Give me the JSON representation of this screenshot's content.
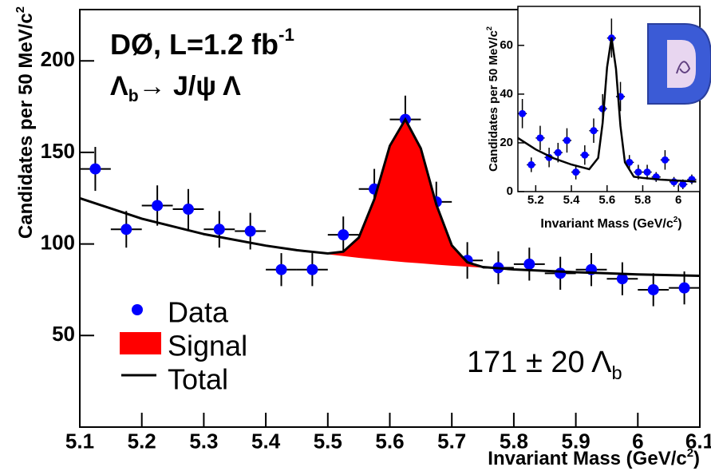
{
  "chart_data": [
    {
      "type": "scatter",
      "title": [
        "DØ, L=1.2 fb",
        "-1"
      ],
      "subtitle": [
        "Λ",
        "b",
        "→ J/ψ Λ"
      ],
      "annotation": [
        "171 ± 20 Λ",
        "b"
      ],
      "xlabel": [
        "Invariant Mass (GeV/c",
        "2",
        ")"
      ],
      "ylabel": [
        "Candidates per 50 MeV/c",
        "2"
      ],
      "xlim": [
        5.1,
        6.1
      ],
      "ylim": [
        0,
        228
      ],
      "xticks": [
        5.1,
        5.2,
        5.3,
        5.4,
        5.5,
        5.6,
        5.7,
        5.8,
        5.9,
        6,
        6.1
      ],
      "yticks": [
        50,
        100,
        150,
        200
      ],
      "legend": "lower left",
      "series": [
        {
          "name": "Data",
          "color": "#0000ff",
          "x": [
            5.125,
            5.175,
            5.225,
            5.275,
            5.325,
            5.375,
            5.425,
            5.475,
            5.525,
            5.575,
            5.625,
            5.675,
            5.725,
            5.775,
            5.825,
            5.875,
            5.925,
            5.975,
            6.025,
            6.075
          ],
          "values": [
            141,
            108,
            121,
            119,
            108,
            107,
            86,
            86,
            105,
            130,
            168,
            123,
            91,
            87,
            89,
            84,
            86,
            81,
            75,
            76
          ],
          "errors": [
            12,
            10,
            11,
            11,
            10,
            10,
            9,
            9,
            10,
            11,
            13,
            11,
            10,
            9,
            9,
            9,
            9,
            9,
            9,
            9
          ],
          "xerr": 0.025
        },
        {
          "name": "Signal",
          "color": "#ff0000",
          "x": [
            5.475,
            5.5,
            5.525,
            5.55,
            5.575,
            5.6,
            5.625,
            5.65,
            5.675,
            5.7,
            5.725,
            5.75,
            5.775
          ],
          "values": [
            95.4,
            94.8,
            95.8,
            103.5,
            124.4,
            153.6,
            168,
            152.2,
            121.5,
            99.2,
            90,
            87.4,
            86.5
          ],
          "base": [
            95.4,
            94.4,
            93.4,
            92.4,
            91.6,
            90.8,
            90.0,
            89.4,
            88.7,
            88.1,
            87.6,
            87.0,
            86.5
          ]
        },
        {
          "name": "Total",
          "color": "#000000",
          "x": [
            5.1,
            5.2,
            5.3,
            5.4,
            5.45,
            5.5,
            5.525,
            5.55,
            5.575,
            5.6,
            5.625,
            5.65,
            5.675,
            5.7,
            5.725,
            5.75,
            5.8,
            5.9,
            6.0,
            6.1
          ],
          "values": [
            125,
            113.8,
            105.4,
            99.1,
            96.6,
            94.8,
            95.8,
            103.5,
            124.4,
            153.6,
            168,
            152.2,
            121.5,
            99.2,
            90,
            87.4,
            86.1,
            84.6,
            83.4,
            82.6
          ]
        }
      ]
    },
    {
      "type": "scatter",
      "xlabel": [
        "Invariant Mass (GeV/c",
        "2",
        ")"
      ],
      "ylabel": [
        "Candidates per 50 MeV/c",
        "2"
      ],
      "xlim": [
        5.1,
        6.12
      ],
      "ylim": [
        0,
        76
      ],
      "xticks": [
        5.2,
        5.4,
        5.6,
        5.8,
        6
      ],
      "yticks": [
        0,
        20,
        40,
        60
      ],
      "series": [
        {
          "color": "#0000ff",
          "x": [
            5.125,
            5.175,
            5.225,
            5.275,
            5.325,
            5.375,
            5.425,
            5.475,
            5.525,
            5.575,
            5.625,
            5.675,
            5.725,
            5.775,
            5.825,
            5.875,
            5.925,
            5.975,
            6.025,
            6.075
          ],
          "values": [
            32,
            11,
            22,
            14,
            16,
            21,
            8,
            15,
            25,
            34,
            63,
            39,
            12,
            8,
            8,
            6,
            13,
            4,
            3,
            5
          ],
          "errors": [
            6,
            3,
            5,
            4,
            4,
            5,
            3,
            4,
            5,
            6,
            8,
            6,
            3,
            3,
            3,
            2,
            4,
            2,
            2,
            2
          ],
          "xerr": 0.025
        },
        {
          "color": "#000000",
          "x": [
            5.1,
            5.2,
            5.3,
            5.4,
            5.5,
            5.55,
            5.575,
            5.6,
            5.625,
            5.65,
            5.675,
            5.7,
            5.75,
            5.8,
            5.9,
            6.0,
            6.1
          ],
          "values": [
            22,
            17.3,
            13.7,
            11.1,
            9.2,
            13.8,
            28.1,
            51.0,
            63.2,
            50.4,
            26.9,
            12.0,
            6.1,
            5.6,
            4.9,
            4.5,
            4.1
          ]
        }
      ]
    }
  ]
}
